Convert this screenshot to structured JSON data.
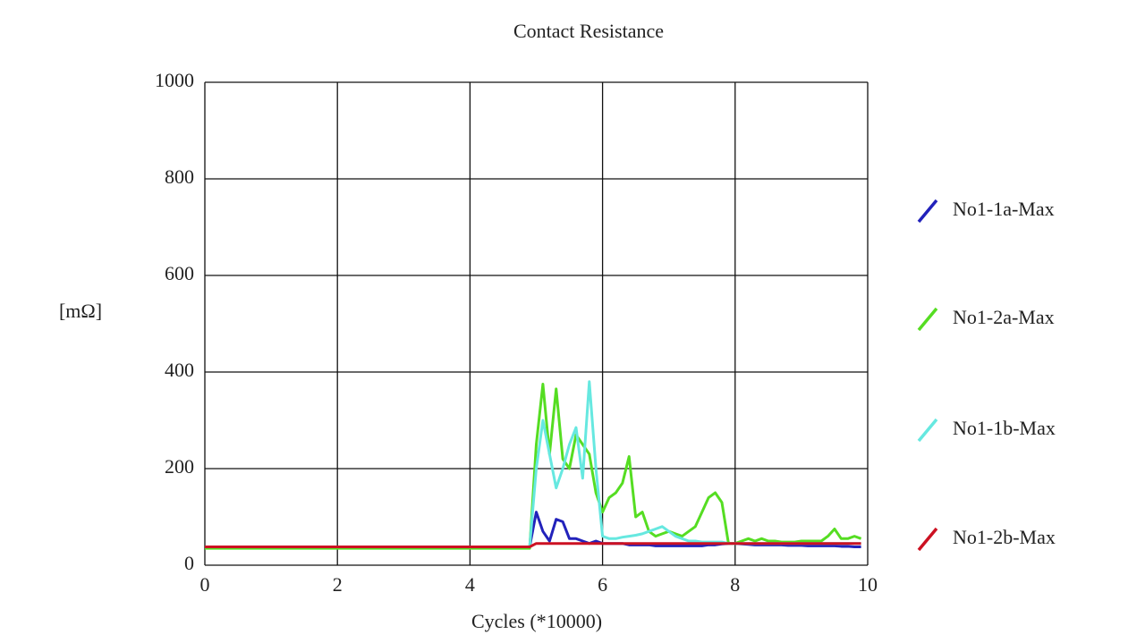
{
  "chart_data": {
    "type": "line",
    "title": "Contact Resistance",
    "x_label": "Cycles (*10000)",
    "y_label": "[mΩ]",
    "x": [
      0,
      4.9,
      5.0,
      5.1,
      5.2,
      5.3,
      5.4,
      5.5,
      5.6,
      5.7,
      5.8,
      5.9,
      6.0,
      6.1,
      6.2,
      6.3,
      6.4,
      6.5,
      6.6,
      6.7,
      6.8,
      6.9,
      7.0,
      7.1,
      7.2,
      7.3,
      7.4,
      7.5,
      7.6,
      7.7,
      7.8,
      7.9,
      8.0,
      8.1,
      8.2,
      8.3,
      8.4,
      8.5,
      8.6,
      8.7,
      8.8,
      8.9,
      9.0,
      9.1,
      9.2,
      9.3,
      9.4,
      9.5,
      9.6,
      9.7,
      9.8,
      9.9
    ],
    "series": [
      {
        "name": "No1-1a-Max",
        "color": "#2222bb",
        "values": [
          38,
          38,
          110,
          70,
          50,
          95,
          90,
          55,
          55,
          50,
          45,
          50,
          45,
          45,
          45,
          45,
          42,
          42,
          42,
          42,
          40,
          40,
          40,
          40,
          40,
          40,
          40,
          40,
          42,
          42,
          44,
          45,
          45,
          44,
          43,
          42,
          42,
          42,
          42,
          42,
          41,
          41,
          41,
          40,
          40,
          40,
          40,
          40,
          39,
          39,
          38,
          38
        ]
      },
      {
        "name": "No1-2a-Max",
        "color": "#55dd22",
        "values": [
          35,
          35,
          250,
          375,
          230,
          365,
          220,
          200,
          270,
          250,
          230,
          150,
          110,
          140,
          150,
          170,
          225,
          100,
          110,
          70,
          60,
          65,
          70,
          65,
          60,
          70,
          80,
          110,
          140,
          150,
          130,
          45,
          45,
          50,
          55,
          50,
          55,
          50,
          50,
          48,
          48,
          48,
          50,
          50,
          50,
          50,
          60,
          75,
          55,
          55,
          60,
          55
        ]
      },
      {
        "name": "No1-1b-Max",
        "color": "#66e8e0",
        "values": [
          38,
          38,
          200,
          300,
          230,
          160,
          200,
          250,
          285,
          180,
          380,
          200,
          60,
          55,
          55,
          58,
          60,
          62,
          65,
          70,
          75,
          80,
          70,
          60,
          55,
          50,
          50,
          48,
          48,
          48,
          48,
          45,
          45,
          45,
          45,
          45,
          45,
          45,
          45,
          45,
          45,
          45,
          45,
          45,
          45,
          45,
          45,
          45,
          45,
          45,
          45,
          45
        ]
      },
      {
        "name": "No1-2b-Max",
        "color": "#cc1122",
        "values": [
          38,
          38,
          45,
          45,
          45,
          45,
          45,
          45,
          45,
          45,
          45,
          45,
          45,
          45,
          45,
          45,
          45,
          45,
          45,
          45,
          45,
          45,
          45,
          45,
          45,
          45,
          45,
          45,
          45,
          45,
          45,
          45,
          45,
          45,
          45,
          45,
          45,
          45,
          45,
          45,
          45,
          45,
          45,
          45,
          45,
          45,
          45,
          45,
          45,
          45,
          45,
          45
        ]
      }
    ],
    "xlim": [
      0,
      10
    ],
    "xticks": [
      0,
      2,
      4,
      6,
      8,
      10
    ],
    "ylim": [
      0,
      1000
    ],
    "yticks": [
      0,
      200,
      400,
      600,
      800,
      1000
    ],
    "grid": true,
    "legend": "right"
  }
}
